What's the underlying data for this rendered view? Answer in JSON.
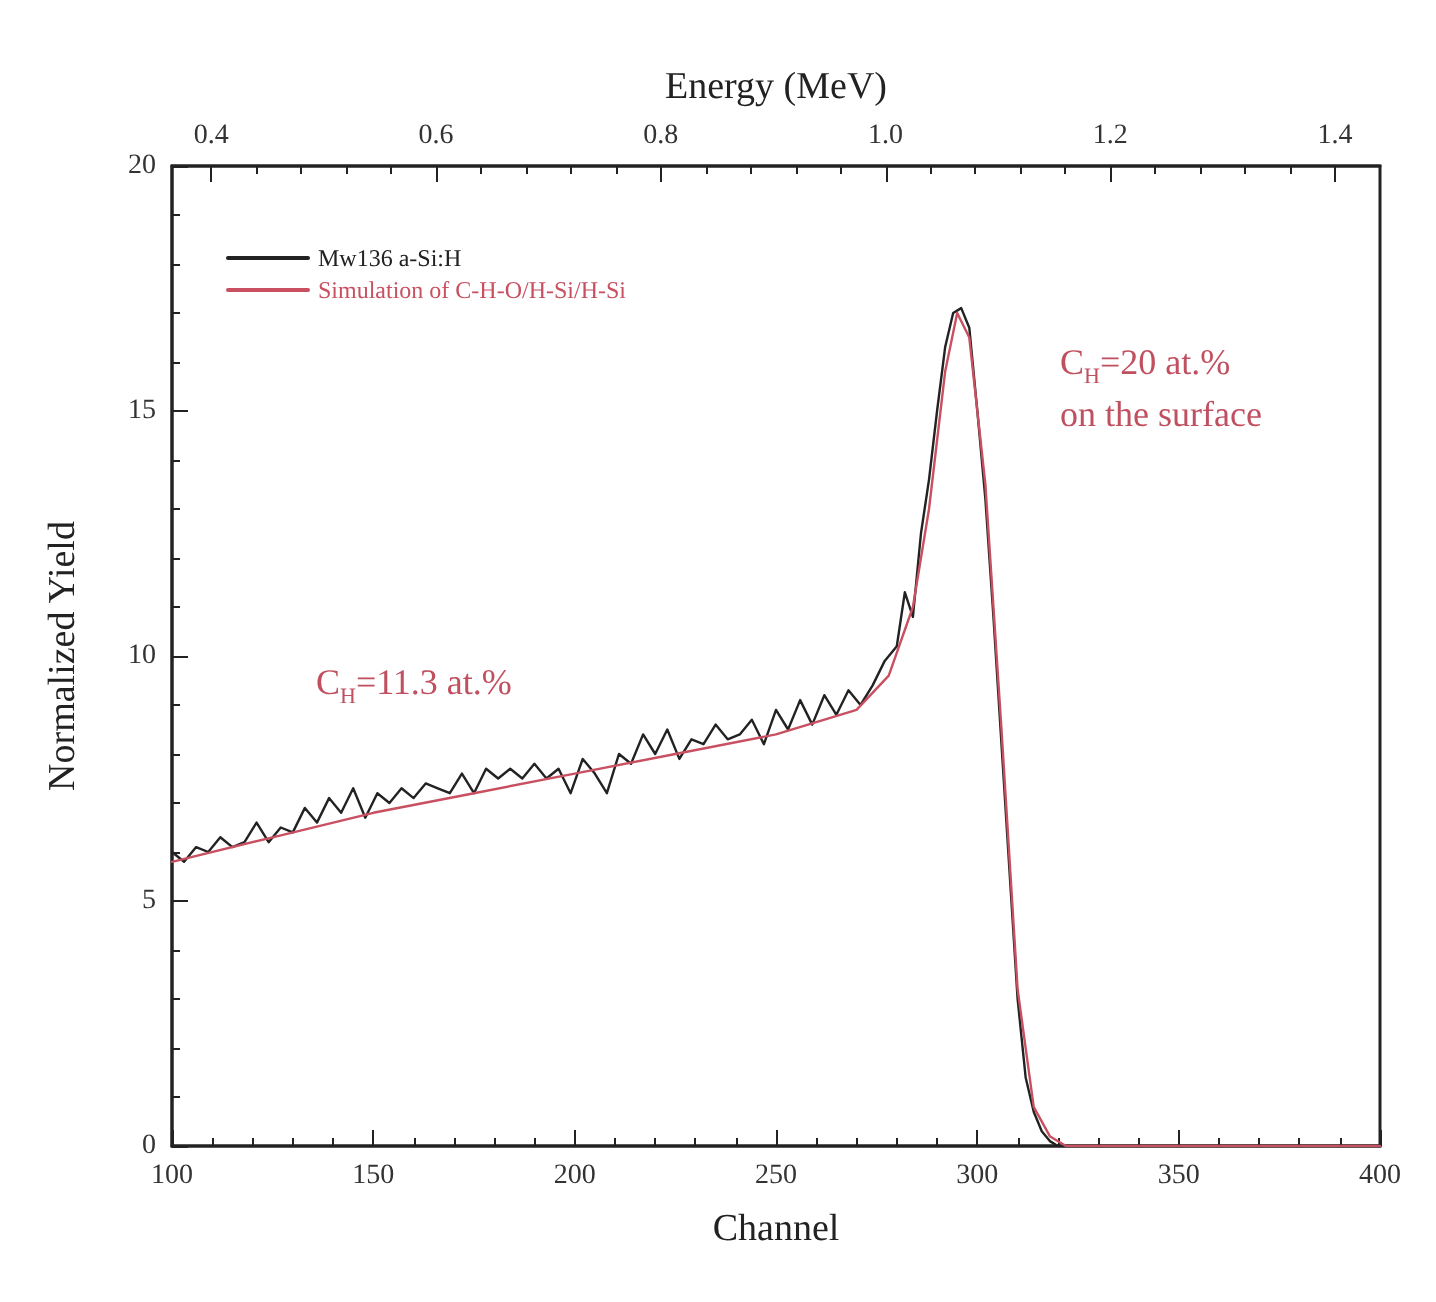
{
  "chart_data": {
    "type": "line",
    "xlabel": "Channel",
    "ylabel": "Normalized Yield",
    "x2label": "Energy (MeV)",
    "xlim": [
      100,
      400
    ],
    "xticks": [
      100,
      150,
      200,
      250,
      300,
      350,
      400
    ],
    "ylim": [
      0,
      20
    ],
    "yticks": [
      0,
      5,
      10,
      15,
      20
    ],
    "x2lim": [
      0.365,
      1.44
    ],
    "x2ticks": [
      0.4,
      0.6,
      0.8,
      {
        "value": 1.0,
        "label": "1.0"
      },
      1.2,
      1.4
    ],
    "grid": false,
    "legend": "top left",
    "series": [
      {
        "name": "Mw136 a-Si:H",
        "color": "#222222",
        "x": [
          100,
          103,
          106,
          109,
          112,
          115,
          118,
          121,
          124,
          127,
          130,
          133,
          136,
          139,
          142,
          145,
          148,
          151,
          154,
          157,
          160,
          163,
          166,
          169,
          172,
          175,
          178,
          181,
          184,
          187,
          190,
          193,
          196,
          199,
          202,
          205,
          208,
          211,
          214,
          217,
          220,
          223,
          226,
          229,
          232,
          235,
          238,
          241,
          244,
          247,
          250,
          253,
          256,
          259,
          262,
          265,
          268,
          271,
          274,
          277,
          280,
          282,
          284,
          286,
          288,
          290,
          292,
          294,
          296,
          298,
          300,
          302,
          304,
          306,
          308,
          310,
          312,
          314,
          316,
          318,
          320,
          330,
          350,
          400
        ],
        "values": [
          6.0,
          5.8,
          6.1,
          6.0,
          6.3,
          6.1,
          6.2,
          6.6,
          6.2,
          6.5,
          6.4,
          6.9,
          6.6,
          7.1,
          6.8,
          7.3,
          6.7,
          7.2,
          7.0,
          7.3,
          7.1,
          7.4,
          7.3,
          7.2,
          7.6,
          7.2,
          7.7,
          7.5,
          7.7,
          7.5,
          7.8,
          7.5,
          7.7,
          7.2,
          7.9,
          7.6,
          7.2,
          8.0,
          7.8,
          8.4,
          8.0,
          8.5,
          7.9,
          8.3,
          8.2,
          8.6,
          8.3,
          8.4,
          8.7,
          8.2,
          8.9,
          8.5,
          9.1,
          8.6,
          9.2,
          8.8,
          9.3,
          9.0,
          9.4,
          9.9,
          10.2,
          11.3,
          10.8,
          12.5,
          13.6,
          15.0,
          16.3,
          17.0,
          17.1,
          16.7,
          15.0,
          13.2,
          10.8,
          8.2,
          5.6,
          3.0,
          1.4,
          0.7,
          0.3,
          0.1,
          0.0,
          0.0,
          0.0,
          0.0
        ]
      },
      {
        "name": "Simulation of C-H-O/H-Si/H-Si",
        "color": "#c85060",
        "x": [
          100,
          125,
          150,
          175,
          200,
          225,
          250,
          270,
          278,
          284,
          288,
          292,
          295,
          298,
          302,
          306,
          310,
          314,
          318,
          322,
          400
        ],
        "values": [
          5.8,
          6.3,
          6.8,
          7.2,
          7.6,
          8.0,
          8.4,
          8.9,
          9.6,
          11.0,
          13.0,
          15.8,
          17.0,
          16.5,
          13.5,
          8.5,
          3.2,
          0.8,
          0.2,
          0,
          0
        ]
      }
    ],
    "annotations": [
      "C$_{H}$=11.3 at.%",
      "C$_{H}$=20 at.%\non the surface"
    ]
  }
}
